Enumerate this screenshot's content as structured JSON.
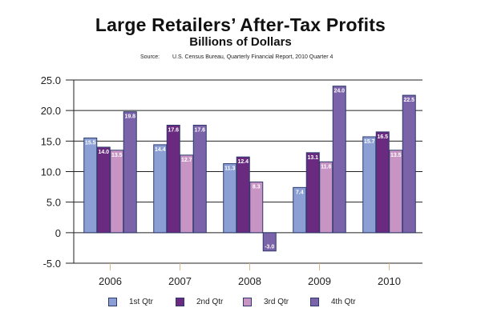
{
  "chart_data": {
    "type": "bar",
    "title": "Large Retailers’ After-Tax Profits",
    "subtitle": "Billions of Dollars",
    "source_label": "Source:",
    "source_text": "U.S. Census Bureau, Quarterly Financial Report, 2010 Quarter 4",
    "xlabel": "",
    "ylabel": "",
    "ylim": [
      -5,
      25
    ],
    "yticks": [
      25,
      20,
      15,
      10,
      5,
      0,
      -5
    ],
    "ytick_labels": [
      "25.0",
      "20.0",
      "15.0",
      "10.0",
      "5.0",
      "0",
      "-5.0"
    ],
    "grid": true,
    "legend_position": "bottom",
    "categories": [
      "2006",
      "2007",
      "2008",
      "2009",
      "2010"
    ],
    "series": [
      {
        "name": "1st Qtr",
        "color": "#8b9fd4",
        "values": [
          15.5,
          14.4,
          11.3,
          7.4,
          15.7
        ],
        "labels": [
          "15.5",
          "14.4",
          "11.3",
          "7.4",
          "15.7"
        ]
      },
      {
        "name": "2nd Qtr",
        "color": "#6a2a80",
        "values": [
          14.0,
          17.6,
          12.4,
          13.1,
          16.5
        ],
        "labels": [
          "14.0",
          "17.6",
          "12.4",
          "13.1",
          "16.5"
        ]
      },
      {
        "name": "3rd Qtr",
        "color": "#c894c4",
        "values": [
          13.5,
          12.7,
          8.3,
          11.6,
          13.5
        ],
        "labels": [
          "13.5",
          "12.7",
          "8.3",
          "11.6",
          "13.5"
        ]
      },
      {
        "name": "4th Qtr",
        "color": "#7b63aa",
        "values": [
          19.8,
          17.6,
          -3.0,
          24.0,
          22.5
        ],
        "labels": [
          "19.8",
          "17.6",
          "-3.0",
          "24.0",
          "22.5"
        ]
      }
    ],
    "bar_border_color": "#2e3a6e"
  }
}
